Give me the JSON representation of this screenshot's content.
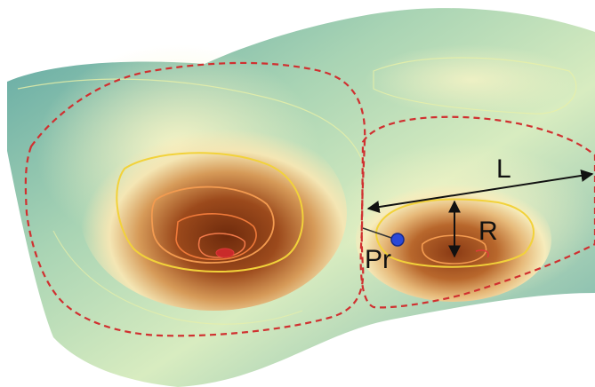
{
  "labels": {
    "length": "L",
    "radius": "R",
    "point": "Pr"
  },
  "colors": {
    "surface_edge": "#4f9a98",
    "surface_mid": "#b9ddb6",
    "surface_light": "#f7f3c0",
    "basin_deep": "#7a3210",
    "basin_mid": "#c4783a",
    "contour_outer": "#f2d23a",
    "contour_inner": "#f07a3a",
    "boundary": "#d03030",
    "point": "#2a48d8",
    "arrow": "#111111"
  }
}
